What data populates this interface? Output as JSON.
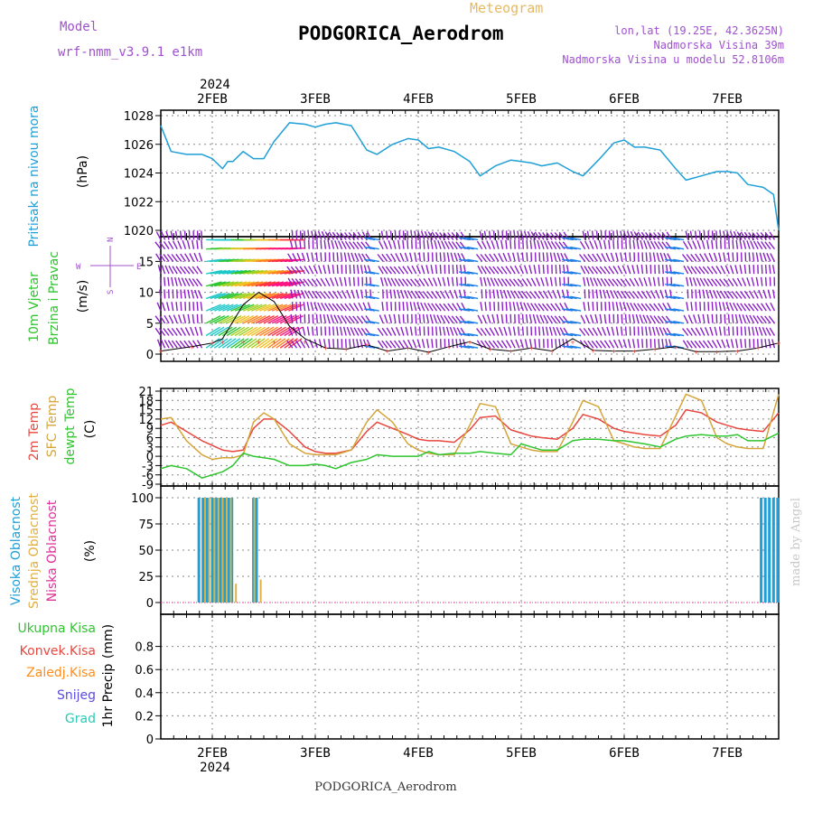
{
  "header": {
    "model_label": "Model",
    "model_name": "wrf-nmm_v3.9.1 e1km",
    "meteogram_label": "Meteogram",
    "station_title": "PODGORICA_Aerodrom",
    "lonlat": "lon,lat (19.25E, 42.3625N)",
    "elevation": "Nadmorska Visina 39m",
    "model_elevation": "Nadmorska Visina u modelu 52.8106m",
    "year_top": "2024",
    "year_bottom": "2024",
    "footer_station": "PODGORICA_Aerodrom",
    "credit": "made by Angel"
  },
  "colors": {
    "pressure": "#1e9fd8",
    "temp2m": "#e8473f",
    "sfc_temp": "#d6a53a",
    "dewpoint": "#2ec52e",
    "cloud_high": "#1e9fd8",
    "cloud_mid": "#e0b040",
    "cloud_low": "#e0309a",
    "wind_purple": "#8a1fc8",
    "precip_total": "#2ec52e",
    "precip_conv": "#e8473f",
    "precip_frozen": "#ff8c1a",
    "precip_snow": "#5a4ce0",
    "precip_hail": "#2ec9b4",
    "violet_text": "#a050d0",
    "gold_text": "#e8b860"
  },
  "chart_data": [
    {
      "type": "line",
      "panel": "pressure",
      "y_title": "Pritisak na nivou mora",
      "ylabel": "(hPa)",
      "ylim": [
        1020,
        1028
      ],
      "yticks": [
        1020,
        1022,
        1024,
        1026,
        1028
      ],
      "x_day_labels": [
        "2FEB",
        "3FEB",
        "4FEB",
        "5FEB",
        "6FEB",
        "7FEB"
      ],
      "x_range_days": [
        1.5,
        7.5
      ],
      "grid": true,
      "series": [
        {
          "x": [
            1.5,
            1.6,
            1.75,
            1.9,
            2.0,
            2.1,
            2.15,
            2.2,
            2.3,
            2.4,
            2.5,
            2.6,
            2.75,
            2.9,
            3.0,
            3.1,
            3.2,
            3.35,
            3.5,
            3.6,
            3.75,
            3.9,
            4.0,
            4.1,
            4.2,
            4.35,
            4.5,
            4.6,
            4.75,
            4.9,
            5.0,
            5.1,
            5.2,
            5.35,
            5.5,
            5.6,
            5.75,
            5.9,
            6.0,
            6.1,
            6.2,
            6.35,
            6.5,
            6.6,
            6.75,
            6.9,
            7.0,
            7.1,
            7.2,
            7.35,
            7.45,
            7.5
          ],
          "values": [
            1027.3,
            1025.5,
            1025.3,
            1025.3,
            1025.0,
            1024.3,
            1024.8,
            1024.8,
            1025.5,
            1025.0,
            1025.0,
            1026.2,
            1027.5,
            1027.4,
            1027.2,
            1027.4,
            1027.5,
            1027.3,
            1025.6,
            1025.3,
            1026.0,
            1026.4,
            1026.3,
            1025.7,
            1025.8,
            1025.5,
            1024.8,
            1023.8,
            1024.5,
            1024.9,
            1024.8,
            1024.7,
            1024.5,
            1024.7,
            1024.1,
            1023.8,
            1024.9,
            1026.1,
            1026.3,
            1025.8,
            1025.8,
            1025.6,
            1024.3,
            1023.5,
            1023.8,
            1024.1,
            1024.1,
            1024.0,
            1023.2,
            1023.0,
            1022.5,
            1020.0
          ]
        }
      ]
    },
    {
      "type": "barbs",
      "panel": "wind",
      "y_title": "10m Vjetar Brzina i Pravac",
      "ylabel": "(m/s)",
      "compass": [
        "N",
        "S",
        "W",
        "E"
      ],
      "ylim": [
        0,
        19
      ],
      "yticks": [
        0,
        5,
        10,
        15
      ],
      "barb_rows_ms": [
        1,
        3,
        5,
        7,
        9,
        11,
        13,
        15,
        17,
        18.5
      ],
      "x_range_days": [
        1.5,
        7.5
      ],
      "grid": true,
      "speed_series": {
        "x": [
          1.5,
          1.8,
          2.0,
          2.1,
          2.3,
          2.45,
          2.6,
          2.75,
          2.9,
          3.1,
          3.3,
          3.5,
          3.7,
          3.9,
          4.1,
          4.3,
          4.5,
          4.7,
          4.9,
          5.1,
          5.3,
          5.5,
          5.7,
          5.9,
          6.1,
          6.3,
          6.5,
          6.7,
          6.9,
          7.1,
          7.3,
          7.5
        ],
        "values": [
          0.5,
          1.2,
          1.8,
          2.5,
          8.0,
          10.0,
          8.5,
          4.5,
          2.5,
          1.0,
          0.8,
          1.5,
          0.5,
          1.0,
          0.3,
          1.2,
          2.0,
          0.8,
          0.5,
          1.0,
          0.5,
          2.5,
          0.6,
          0.5,
          0.5,
          0.8,
          1.2,
          0.4,
          0.4,
          0.5,
          1.0,
          1.8
        ]
      }
    },
    {
      "type": "line",
      "panel": "temperature",
      "y_titles": [
        "2m Temp",
        "SFC Temp",
        "dewpt Temp"
      ],
      "ylabel": "(C)",
      "ylim": [
        -9,
        21
      ],
      "yticks": [
        -9,
        -6,
        -3,
        0,
        3,
        6,
        9,
        12,
        15,
        18,
        21
      ],
      "x_range_days": [
        1.5,
        7.5
      ],
      "grid": true,
      "series": [
        {
          "key": "temp2m",
          "x": [
            1.5,
            1.6,
            1.75,
            1.9,
            2.0,
            2.1,
            2.2,
            2.3,
            2.4,
            2.5,
            2.6,
            2.75,
            2.9,
            3.0,
            3.1,
            3.2,
            3.35,
            3.5,
            3.6,
            3.75,
            3.9,
            4.0,
            4.1,
            4.2,
            4.35,
            4.5,
            4.6,
            4.75,
            4.9,
            5.0,
            5.1,
            5.2,
            5.35,
            5.5,
            5.6,
            5.75,
            5.9,
            6.0,
            6.1,
            6.2,
            6.35,
            6.5,
            6.6,
            6.75,
            6.9,
            7.0,
            7.1,
            7.2,
            7.35,
            7.5
          ],
          "values": [
            10.0,
            11.0,
            8.0,
            5.0,
            3.5,
            2.0,
            1.5,
            2.0,
            9.0,
            12.0,
            12.0,
            8.0,
            3.0,
            1.5,
            1.0,
            1.0,
            2.0,
            8.0,
            11.0,
            9.0,
            7.0,
            5.5,
            5.0,
            5.0,
            4.5,
            8.5,
            12.5,
            13.0,
            8.5,
            7.5,
            6.5,
            6.0,
            5.5,
            9.0,
            13.5,
            12.0,
            9.0,
            8.0,
            7.5,
            7.0,
            6.5,
            10.0,
            15.0,
            14.0,
            11.0,
            10.0,
            9.0,
            8.5,
            8.0,
            14.0
          ]
        },
        {
          "key": "sfc_temp",
          "x": [
            1.5,
            1.6,
            1.75,
            1.9,
            2.0,
            2.1,
            2.2,
            2.3,
            2.4,
            2.5,
            2.6,
            2.75,
            2.9,
            3.0,
            3.1,
            3.2,
            3.35,
            3.5,
            3.6,
            3.75,
            3.9,
            4.0,
            4.1,
            4.2,
            4.35,
            4.5,
            4.6,
            4.75,
            4.9,
            5.0,
            5.1,
            5.2,
            5.35,
            5.5,
            5.6,
            5.75,
            5.9,
            6.0,
            6.1,
            6.2,
            6.35,
            6.5,
            6.6,
            6.75,
            6.9,
            7.0,
            7.1,
            7.2,
            7.35,
            7.5
          ],
          "values": [
            12.0,
            12.5,
            5.0,
            0.5,
            -1.0,
            -0.5,
            -0.5,
            0.5,
            11.0,
            14.0,
            12.0,
            4.0,
            1.0,
            0.5,
            0.5,
            0.5,
            2.0,
            11.0,
            15.0,
            11.0,
            4.0,
            2.0,
            1.0,
            0.5,
            0.5,
            10.0,
            17.0,
            16.0,
            4.0,
            3.0,
            2.0,
            1.5,
            1.5,
            11.0,
            18.0,
            16.0,
            5.0,
            4.0,
            3.0,
            2.5,
            2.5,
            13.0,
            20.0,
            18.0,
            6.0,
            4.0,
            3.0,
            2.5,
            2.5,
            20.0
          ]
        },
        {
          "key": "dewpoint",
          "x": [
            1.5,
            1.6,
            1.75,
            1.9,
            2.0,
            2.1,
            2.2,
            2.3,
            2.4,
            2.5,
            2.6,
            2.75,
            2.9,
            3.0,
            3.1,
            3.2,
            3.35,
            3.5,
            3.6,
            3.75,
            3.9,
            4.0,
            4.1,
            4.2,
            4.35,
            4.5,
            4.6,
            4.75,
            4.9,
            5.0,
            5.1,
            5.2,
            5.35,
            5.5,
            5.6,
            5.75,
            5.9,
            6.0,
            6.1,
            6.2,
            6.35,
            6.5,
            6.6,
            6.75,
            6.9,
            7.0,
            7.1,
            7.2,
            7.35,
            7.5
          ],
          "values": [
            -4.0,
            -3.0,
            -4.0,
            -7.0,
            -6.0,
            -5.0,
            -3.0,
            1.0,
            0.0,
            -0.5,
            -1.0,
            -3.0,
            -3.0,
            -2.5,
            -3.0,
            -4.0,
            -2.0,
            -1.0,
            0.5,
            0.0,
            0.0,
            0.0,
            1.5,
            0.5,
            1.0,
            1.0,
            1.5,
            1.0,
            0.5,
            4.0,
            3.0,
            2.0,
            2.0,
            5.0,
            5.5,
            5.5,
            5.0,
            5.0,
            4.5,
            4.0,
            3.0,
            5.5,
            6.5,
            7.0,
            6.5,
            6.5,
            7.0,
            5.0,
            5.0,
            7.5
          ]
        }
      ]
    },
    {
      "type": "bar",
      "panel": "clouds",
      "y_titles": [
        "Visoka Oblacnost",
        "Srednja Oblacnost",
        "Niska Oblacnost"
      ],
      "ylabel": "(%)",
      "ylim": [
        0,
        100
      ],
      "yticks": [
        0,
        25,
        50,
        75,
        100
      ],
      "x_range_days": [
        1.5,
        7.5
      ],
      "grid": true,
      "series": [
        {
          "key": "cloud_high",
          "x": [
            1.87,
            1.91,
            1.95,
            2.0,
            2.04,
            2.08,
            2.12,
            2.16,
            2.19,
            2.4,
            2.43,
            7.33,
            7.37,
            7.41,
            7.45,
            7.49
          ],
          "values": [
            100,
            100,
            100,
            100,
            100,
            100,
            100,
            100,
            100,
            100,
            100,
            100,
            100,
            100,
            100,
            100
          ]
        },
        {
          "key": "cloud_mid",
          "x": [
            1.93,
            1.97,
            2.02,
            2.06,
            2.1,
            2.14,
            2.18,
            2.23,
            2.41,
            2.47
          ],
          "values": [
            100,
            100,
            100,
            100,
            100,
            100,
            100,
            18,
            100,
            22
          ]
        },
        {
          "key": "cloud_low",
          "x": [],
          "values": []
        }
      ]
    },
    {
      "type": "bar",
      "panel": "precip",
      "y_title": "1hr Precip",
      "ylabel": "(mm)",
      "ylim": [
        0,
        1.0
      ],
      "yticks": [
        0,
        0.2,
        0.4,
        0.6,
        0.8
      ],
      "x_range_days": [
        1.5,
        7.5
      ],
      "grid": true,
      "legend": [
        "Ukupna Kisa",
        "Konvek.Kisa",
        "Zaledj.Kisa",
        "Snijeg",
        "Grad"
      ],
      "series": []
    }
  ]
}
